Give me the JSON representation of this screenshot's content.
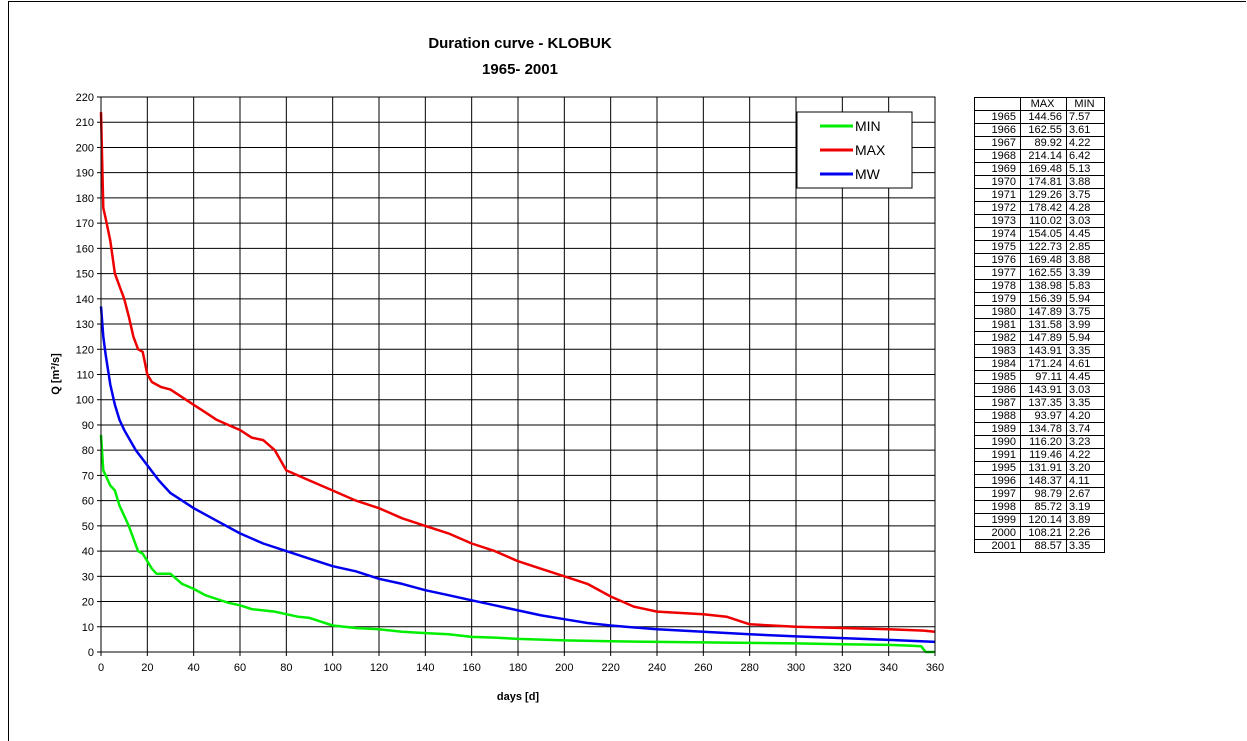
{
  "chart_data": {
    "type": "line",
    "title": "Duration curve - KLOBUK",
    "subtitle": "1965- 2001",
    "xlabel": "days [d]",
    "ylabel": "Q [m³/s]",
    "xlim": [
      0,
      360
    ],
    "ylim": [
      0,
      220
    ],
    "x_ticks": [
      "0",
      "20",
      "40",
      "60",
      "80",
      "100",
      "120",
      "140",
      "160",
      "180",
      "200",
      "220",
      "240",
      "260",
      "280",
      "300",
      "320",
      "340",
      "360"
    ],
    "y_ticks": [
      "0",
      "10",
      "20",
      "30",
      "40",
      "50",
      "60",
      "70",
      "80",
      "90",
      "100",
      "110",
      "120",
      "130",
      "140",
      "150",
      "160",
      "170",
      "180",
      "190",
      "200",
      "210",
      "220"
    ],
    "grid": true,
    "legend_position": "top-right",
    "series": [
      {
        "name": "MIN",
        "color": "#00ee00",
        "x": [
          0,
          1,
          2,
          4,
          6,
          8,
          10,
          12,
          14,
          16,
          18,
          20,
          22,
          24,
          26,
          30,
          35,
          40,
          45,
          50,
          55,
          60,
          65,
          70,
          75,
          80,
          85,
          90,
          95,
          100,
          110,
          120,
          130,
          140,
          150,
          160,
          170,
          180,
          200,
          220,
          240,
          260,
          280,
          300,
          320,
          340,
          350,
          354,
          356,
          360
        ],
        "y": [
          86,
          72,
          70,
          66,
          64,
          58,
          54,
          50,
          45,
          40,
          39,
          36,
          33,
          31,
          31,
          31,
          27,
          25,
          22.5,
          21,
          19.5,
          18.5,
          17,
          16.5,
          16,
          15,
          14,
          13.5,
          12,
          10.5,
          9.5,
          9,
          8,
          7.5,
          7,
          6,
          5.7,
          5.2,
          4.6,
          4.3,
          4,
          3.8,
          3.6,
          3.4,
          3.1,
          2.8,
          2.5,
          2.3,
          0,
          0
        ]
      },
      {
        "name": "MAX",
        "color": "#ee0000",
        "x": [
          0,
          1,
          2,
          4,
          6,
          8,
          10,
          12,
          14,
          16,
          18,
          20,
          22,
          26,
          30,
          35,
          40,
          45,
          50,
          55,
          60,
          65,
          70,
          75,
          80,
          90,
          100,
          110,
          120,
          130,
          140,
          150,
          160,
          170,
          180,
          190,
          200,
          210,
          220,
          230,
          240,
          260,
          270,
          280,
          300,
          320,
          340,
          355,
          360
        ],
        "y": [
          214,
          176,
          172,
          163,
          150,
          145,
          140,
          133,
          125,
          120,
          119,
          110,
          107,
          105,
          104,
          101,
          98,
          95,
          92,
          90,
          88,
          85,
          84,
          80,
          72,
          68,
          64,
          60,
          57,
          53,
          50,
          47,
          43,
          40,
          36,
          33,
          30,
          27,
          22,
          18,
          16,
          15,
          14,
          11,
          10,
          9.5,
          9,
          8.5,
          8
        ]
      },
      {
        "name": "MW",
        "color": "#0000ee",
        "x": [
          0,
          1,
          2,
          4,
          6,
          8,
          10,
          15,
          20,
          25,
          30,
          35,
          40,
          50,
          60,
          70,
          80,
          90,
          100,
          110,
          120,
          130,
          140,
          150,
          160,
          170,
          180,
          190,
          200,
          210,
          220,
          240,
          260,
          280,
          300,
          320,
          340,
          360
        ],
        "y": [
          137,
          125,
          118,
          106,
          98,
          92,
          88,
          80,
          74,
          68,
          63,
          60,
          57,
          52,
          47,
          43,
          40,
          37,
          34,
          32,
          29,
          27,
          24.5,
          22.5,
          20.5,
          18.5,
          16.5,
          14.5,
          13,
          11.5,
          10.5,
          9,
          8,
          7,
          6.2,
          5.5,
          4.8,
          4
        ]
      }
    ]
  },
  "table": {
    "headers": [
      "",
      "MAX",
      "MIN"
    ],
    "rows": [
      [
        "1965",
        "144.56",
        "7.57"
      ],
      [
        "1966",
        "162.55",
        "3.61"
      ],
      [
        "1967",
        "89.92",
        "4.22"
      ],
      [
        "1968",
        "214.14",
        "6.42"
      ],
      [
        "1969",
        "169.48",
        "5.13"
      ],
      [
        "1970",
        "174.81",
        "3.88"
      ],
      [
        "1971",
        "129.26",
        "3.75"
      ],
      [
        "1972",
        "178.42",
        "4.28"
      ],
      [
        "1973",
        "110.02",
        "3.03"
      ],
      [
        "1974",
        "154.05",
        "4.45"
      ],
      [
        "1975",
        "122.73",
        "2.85"
      ],
      [
        "1976",
        "169.48",
        "3.88"
      ],
      [
        "1977",
        "162.55",
        "3.39"
      ],
      [
        "1978",
        "138.98",
        "5.83"
      ],
      [
        "1979",
        "156.39",
        "5.94"
      ],
      [
        "1980",
        "147.89",
        "3.75"
      ],
      [
        "1981",
        "131.58",
        "3.99"
      ],
      [
        "1982",
        "147.89",
        "5.94"
      ],
      [
        "1983",
        "143.91",
        "3.35"
      ],
      [
        "1984",
        "171.24",
        "4.61"
      ],
      [
        "1985",
        "97.11",
        "4.45"
      ],
      [
        "1986",
        "143.91",
        "3.03"
      ],
      [
        "1987",
        "137.35",
        "3.35"
      ],
      [
        "1988",
        "93.97",
        "4.20"
      ],
      [
        "1989",
        "134.78",
        "3.74"
      ],
      [
        "1990",
        "116.20",
        "3.23"
      ],
      [
        "1991",
        "119.46",
        "4.22"
      ],
      [
        "1995",
        "131.91",
        "3.20"
      ],
      [
        "1996",
        "148.37",
        "4.11"
      ],
      [
        "1997",
        "98.79",
        "2.67"
      ],
      [
        "1998",
        "85.72",
        "3.19"
      ],
      [
        "1999",
        "120.14",
        "3.89"
      ],
      [
        "2000",
        "108.21",
        "2.26"
      ],
      [
        "2001",
        "88.57",
        "3.35"
      ]
    ]
  }
}
